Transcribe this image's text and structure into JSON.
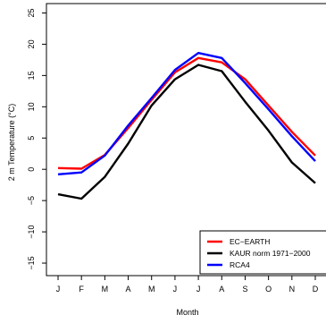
{
  "chart_data": {
    "type": "line",
    "title": "",
    "xlabel": "Month",
    "ylabel": "2 m Temperature (°C)",
    "categories": [
      "J",
      "F",
      "M",
      "A",
      "M",
      "J",
      "J",
      "A",
      "S",
      "O",
      "N",
      "D"
    ],
    "yticks": [
      -15,
      -10,
      -5,
      0,
      5,
      10,
      15,
      20,
      25
    ],
    "ytick_labels": [
      "−15",
      "−10",
      "−5",
      "0",
      "5",
      "10",
      "15",
      "20",
      "25"
    ],
    "ylim": [
      -17,
      26.5
    ],
    "grid": false,
    "legend_position": "bottom-right",
    "series": [
      {
        "name": "EC−EARTH",
        "color": "#ff0000",
        "values": [
          0.2,
          0.1,
          2.3,
          6.6,
          11.1,
          15.5,
          17.8,
          17.1,
          14.4,
          10.2,
          6.0,
          2.2
        ]
      },
      {
        "name": "KAUR norm 1971−2000",
        "color": "#000000",
        "values": [
          -4.0,
          -4.7,
          -1.2,
          4.1,
          10.2,
          14.4,
          16.7,
          15.7,
          10.8,
          6.2,
          1.1,
          -2.2
        ]
      },
      {
        "name": "RCA4",
        "color": "#0000ff",
        "values": [
          -0.8,
          -0.5,
          2.2,
          7.0,
          11.4,
          15.9,
          18.6,
          17.8,
          13.8,
          9.6,
          5.3,
          1.3
        ]
      }
    ]
  }
}
